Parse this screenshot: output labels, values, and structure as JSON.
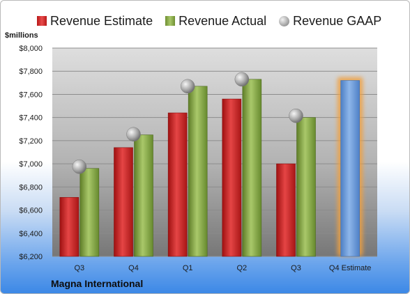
{
  "chart_data": {
    "type": "bar",
    "categories": [
      "Q3",
      "Q4",
      "Q1",
      "Q2",
      "Q3",
      "Q4 Estimate"
    ],
    "series": [
      {
        "name": "Revenue Estimate",
        "values": [
          6710,
          7140,
          7440,
          7560,
          7000,
          7720
        ],
        "color": "#cc2a2a"
      },
      {
        "name": "Revenue Actual",
        "values": [
          6960,
          7250,
          7670,
          7730,
          7400,
          null
        ],
        "color": "#8fae4e"
      },
      {
        "name": "Revenue GAAP",
        "values": [
          6975,
          7255,
          7670,
          7730,
          7415,
          null
        ],
        "color": "#a0a0a0"
      }
    ],
    "ylabel": "$millions",
    "ylim": [
      6200,
      8000
    ],
    "yticks": [
      "$6,200",
      "$6,400",
      "$6,600",
      "$6,800",
      "$7,000",
      "$7,200",
      "$7,400",
      "$7,600",
      "$7,800",
      "$8,000"
    ],
    "ytick_values": [
      6200,
      6400,
      6600,
      6800,
      7000,
      7200,
      7400,
      7600,
      7800,
      8000
    ],
    "grid": true,
    "legend_position": "top",
    "highlight_bar_color": "#6b9bd8",
    "highlight_glow_color": "#f0a040"
  },
  "legend": {
    "estimate": "Revenue Estimate",
    "actual": "Revenue Actual",
    "gaap": "Revenue GAAP"
  },
  "axis": {
    "unit": "$millions"
  },
  "footer": {
    "company": "Magna International"
  }
}
